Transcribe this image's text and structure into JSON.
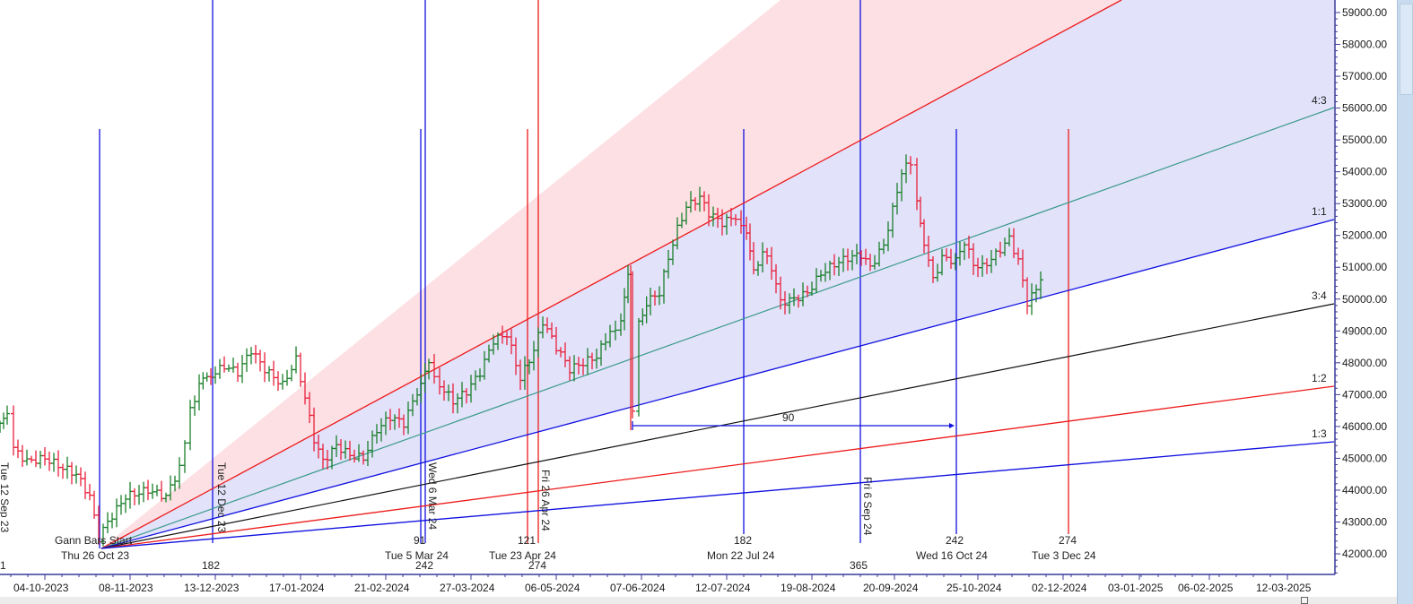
{
  "chart_data": {
    "type": "ohlc-bar-with-gann-fan",
    "title": "",
    "xlabel": "",
    "ylabel": "",
    "ylim": [
      41700,
      59400
    ],
    "y_ticks": [
      "59000.00",
      "58000.00",
      "57000.00",
      "56000.00",
      "55000.00",
      "54000.00",
      "53000.00",
      "52000.00",
      "51000.00",
      "50000.00",
      "49000.00",
      "48000.00",
      "47000.00",
      "46000.00",
      "45000.00",
      "44000.00",
      "43000.00",
      "42000.00"
    ],
    "x_ticks": [
      "04-10-2023",
      "08-11-2023",
      "13-12-2023",
      "17-01-2024",
      "21-02-2024",
      "27-03-2024",
      "06-05-2024",
      "07-06-2024",
      "12-07-2024",
      "19-08-2024",
      "20-09-2024",
      "25-10-2024",
      "02-12-2024",
      "03-01-2025",
      "06-02-2025",
      "12-03-2025"
    ],
    "grid": false,
    "colors": {
      "up": "#1a7f2a",
      "down": "#e8213a",
      "blue": "#1010e0",
      "red": "#ee1a1a",
      "teal": "#3a9a8a",
      "black": "#111111",
      "fill_pink": "#fde0e4",
      "fill_lavender": "#e2e2fb",
      "axis": "#3a3a9a"
    },
    "gann_fan": {
      "start_label": "Gann Bars Start",
      "start_date": "Thu 26 Oct 23",
      "angles": [
        {
          "name": "4:3",
          "end_value": 56000,
          "color": "teal"
        },
        {
          "name": "1:1",
          "end_value": 52500,
          "color": "blue"
        },
        {
          "name": "3:4",
          "end_value": 49900,
          "color": "black"
        },
        {
          "name": "1:2",
          "end_value": 47300,
          "color": "red"
        },
        {
          "name": "1:3",
          "end_value": 45500,
          "color": "blue"
        }
      ]
    },
    "cycle_lines": [
      {
        "date": "Tue 12 Sep 23",
        "count": "1",
        "color": "blue",
        "vertical_label": true
      },
      {
        "date": "Tue 12 Dec 23",
        "count": "182",
        "color": "blue",
        "vertical_label": true
      },
      {
        "date": "Tue 5 Mar 24",
        "count": "91",
        "sub_count": "242",
        "color": "blue"
      },
      {
        "date": "Wed 6 Mar 24",
        "count": "",
        "color": "blue",
        "vertical_label": true
      },
      {
        "date": "Tue 23 Apr 24",
        "count": "121",
        "sub_count": "274",
        "color": "red"
      },
      {
        "date": "Fri 26 Apr 24",
        "count": "",
        "color": "red",
        "vertical_label": true
      },
      {
        "date": "Mon 22 Jul 24",
        "count": "182",
        "color": "blue"
      },
      {
        "date": "Fri 6 Sep 24",
        "count": "365",
        "color": "blue",
        "vertical_label": true
      },
      {
        "date": "Wed 16 Oct 24",
        "count": "242",
        "color": "blue"
      },
      {
        "date": "Tue 3 Dec 24",
        "count": "274",
        "color": "red"
      }
    ],
    "measure": {
      "label": "90",
      "from": "07-06-2024",
      "to": "25-10-2024",
      "level": 46000
    },
    "price_summary": {
      "start_sep_2023": 46200,
      "low_oct_2023": 42400,
      "high_jan_2024": 48500,
      "low_feb_2024": 44700,
      "high_jul_2024": 53300,
      "high_sep_2024": 54400,
      "low_nov_2024": 49800,
      "last_close": 51100
    }
  },
  "labels": {
    "gann_start": "Gann Bars Start",
    "gann_start_date": "Thu 26 Oct 23",
    "v_tue12sep": "Tue 12 Sep 23",
    "v_tue12dec": "Tue 12 Dec 23",
    "v_wed6mar": "Wed 6 Mar 24",
    "v_fri26apr": "Fri 26 Apr 24",
    "v_fri6sep": "Fri 6 Sep 24",
    "c_1": "1",
    "c_182a": "182",
    "c_91": "91",
    "d_tue5mar": "Tue 5 Mar 24",
    "c_242a": "242",
    "c_121": "121",
    "d_tue23apr": "Tue 23 Apr 24",
    "c_274a": "274",
    "c_182b": "182",
    "d_mon22jul": "Mon 22 Jul 24",
    "c_365": "365",
    "c_242b": "242",
    "d_wed16oct": "Wed 16 Oct 24",
    "c_274b": "274",
    "d_tue3dec": "Tue 3 Dec 24",
    "measure_90": "90",
    "angle_43": "4:3",
    "angle_11": "1:1",
    "angle_34": "3:4",
    "angle_12": "1:2",
    "angle_13": "1:3"
  }
}
